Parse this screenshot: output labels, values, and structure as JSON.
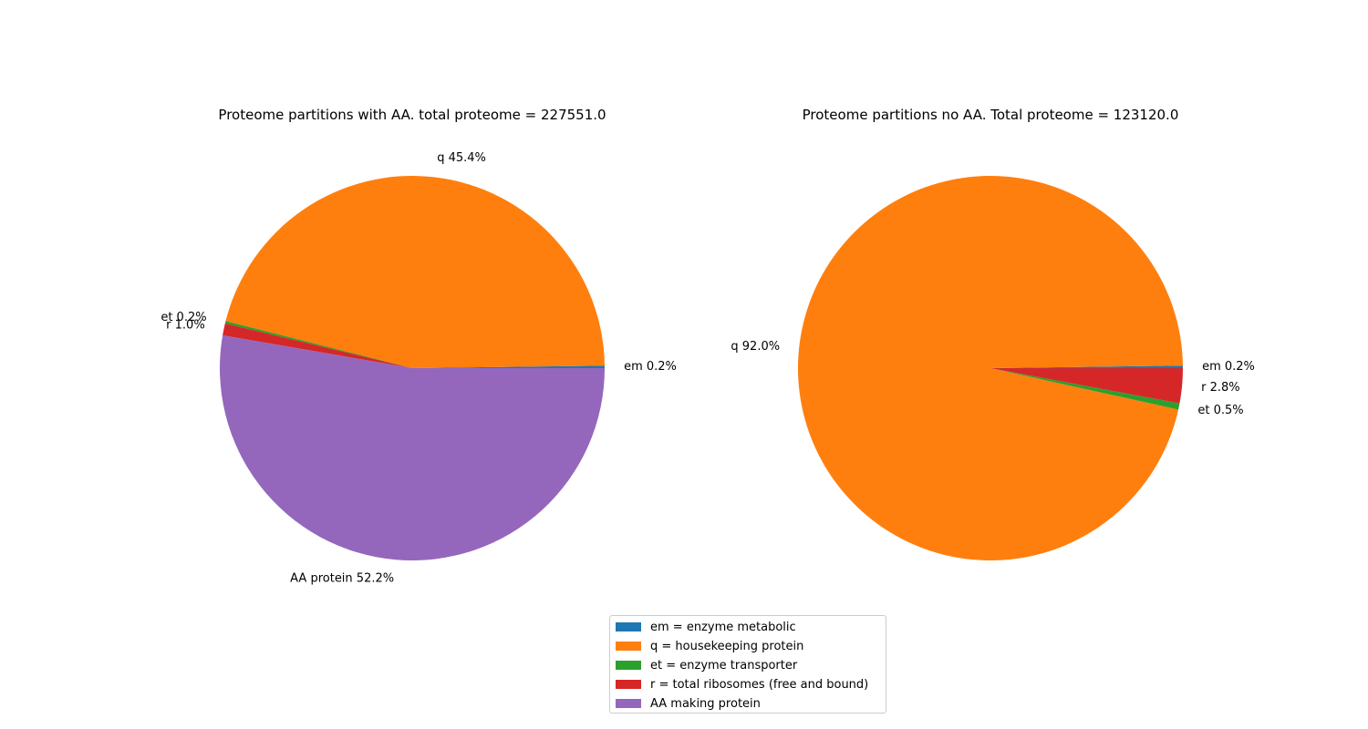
{
  "colors": {
    "em": "#1f77b4",
    "q": "#ff7f0e",
    "et": "#2ca02c",
    "r": "#d62728",
    "aa": "#9467bd"
  },
  "chart_data": [
    {
      "type": "pie",
      "title": "Proteome partitions with AA. total proteome = 227551.0",
      "slices": [
        {
          "key": "em",
          "name": "em",
          "value": 0.2,
          "label": "em 0.2%"
        },
        {
          "key": "q",
          "name": "q",
          "value": 45.4,
          "label": "q 45.4%"
        },
        {
          "key": "et",
          "name": "et",
          "value": 0.2,
          "label": "et 0.2%"
        },
        {
          "key": "r",
          "name": "r",
          "value": 1.0,
          "label": "r 1.0%"
        },
        {
          "key": "aa",
          "name": "AA protein",
          "value": 52.2,
          "label": "AA protein 52.2%"
        }
      ]
    },
    {
      "type": "pie",
      "title": "Proteome partitions no AA. Total proteome = 123120.0",
      "slices": [
        {
          "key": "em",
          "name": "em",
          "value": 0.2,
          "label": "em 0.2%"
        },
        {
          "key": "q",
          "name": "q",
          "value": 92.0,
          "label": "q 92.0%"
        },
        {
          "key": "et",
          "name": "et",
          "value": 0.5,
          "label": "et 0.5%"
        },
        {
          "key": "r",
          "name": "r",
          "value": 2.8,
          "label": "r 2.8%"
        }
      ]
    }
  ],
  "legend": {
    "placement": "bottom-center",
    "items": [
      {
        "key": "em",
        "label": "em = enzyme metabolic"
      },
      {
        "key": "q",
        "label": "q = housekeeping protein"
      },
      {
        "key": "et",
        "label": "et = enzyme transporter"
      },
      {
        "key": "r",
        "label": "r = total ribosomes (free and bound)"
      },
      {
        "key": "aa",
        "label": "AA making protein"
      }
    ]
  }
}
